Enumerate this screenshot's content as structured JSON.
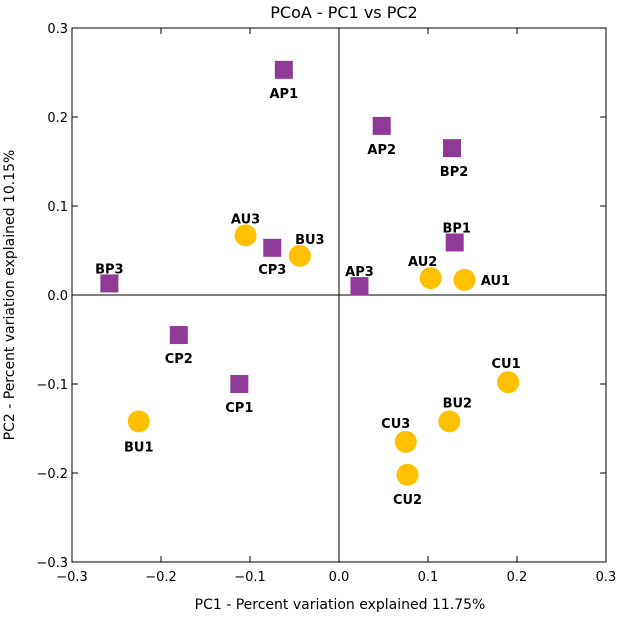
{
  "chart_data": {
    "type": "scatter",
    "title": "PCoA - PC1 vs PC2",
    "xlabel": "PC1 - Percent variation explained 11.75%",
    "ylabel": "PC2 - Percent variation explained 10.15%",
    "xlim": [
      -0.3,
      0.3
    ],
    "ylim": [
      -0.3,
      0.3
    ],
    "x_ticks": [
      "−0.3",
      "−0.2",
      "−0.1",
      "0.0",
      "0.1",
      "0.2",
      "0.3"
    ],
    "y_ticks": [
      "0.3",
      "0.2",
      "0.1",
      "0.0",
      "−0.1",
      "−0.2",
      "−0.3"
    ],
    "grid": false,
    "zero_lines": true,
    "series": [
      {
        "marker": "square",
        "color": "#8e3a96",
        "points": [
          {
            "label": "AP1",
            "x": -0.062,
            "y": 0.253
          },
          {
            "label": "AP2",
            "x": 0.048,
            "y": 0.19
          },
          {
            "label": "BP2",
            "x": 0.127,
            "y": 0.165
          },
          {
            "label": "BP1",
            "x": 0.13,
            "y": 0.059
          },
          {
            "label": "CP3",
            "x": -0.075,
            "y": 0.053
          },
          {
            "label": "AP3",
            "x": 0.023,
            "y": 0.01
          },
          {
            "label": "BP3",
            "x": -0.258,
            "y": 0.013
          },
          {
            "label": "CP2",
            "x": -0.18,
            "y": -0.045
          },
          {
            "label": "CP1",
            "x": -0.112,
            "y": -0.1
          }
        ]
      },
      {
        "marker": "circle",
        "color": "#ffc000",
        "points": [
          {
            "label": "AU3",
            "x": -0.105,
            "y": 0.067
          },
          {
            "label": "BU3",
            "x": -0.044,
            "y": 0.044
          },
          {
            "label": "AU2",
            "x": 0.103,
            "y": 0.019
          },
          {
            "label": "AU1",
            "x": 0.141,
            "y": 0.017
          },
          {
            "label": "CU1",
            "x": 0.19,
            "y": -0.098
          },
          {
            "label": "BU2",
            "x": 0.124,
            "y": -0.142
          },
          {
            "label": "CU3",
            "x": 0.075,
            "y": -0.165
          },
          {
            "label": "CU2",
            "x": 0.077,
            "y": -0.202
          },
          {
            "label": "BU1",
            "x": -0.225,
            "y": -0.142
          }
        ]
      }
    ]
  }
}
